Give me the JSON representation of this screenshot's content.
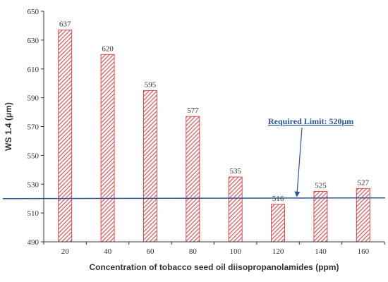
{
  "chart_data": {
    "type": "bar",
    "title": "",
    "xlabel": "Concentration of tobacco seed oil diisopropanolamides (ppm)",
    "ylabel": "WS 1.4 (μm)",
    "categories": [
      "20",
      "40",
      "60",
      "80",
      "100",
      "120",
      "140",
      "160"
    ],
    "values": [
      637,
      620,
      595,
      577,
      535,
      516,
      525,
      527
    ],
    "ylim": [
      490,
      650
    ],
    "yticks": [
      490,
      510,
      530,
      550,
      570,
      590,
      610,
      630,
      650
    ],
    "grid": false,
    "bar_fill": "hatched",
    "colors": {
      "bar": "#e0474c",
      "limit_line": "#2f5597",
      "axis": "#333333"
    },
    "reference_line": {
      "value": 520,
      "label": "Required Limit: 520μm"
    }
  }
}
